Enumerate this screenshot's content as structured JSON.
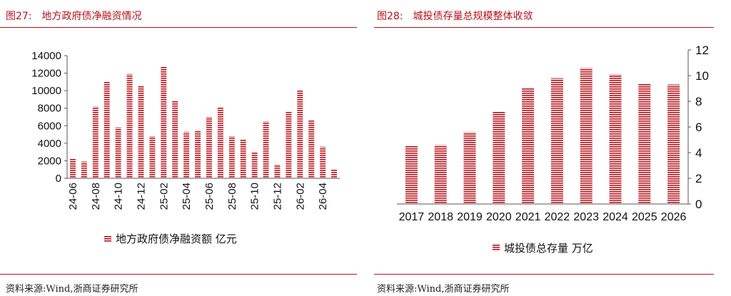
{
  "left": {
    "fig_label": "图27:",
    "fig_title": "地方政府债净融资情况",
    "source_label": "资料来源:",
    "source_text": "Wind,浙商证券研究所",
    "chart_data": {
      "type": "bar",
      "categories": [
        "24-06",
        "24-07",
        "24-08",
        "24-09",
        "24-10",
        "24-11",
        "24-12",
        "25-01",
        "25-02",
        "25-03",
        "25-04",
        "25-05",
        "25-06",
        "25-07",
        "25-08",
        "25-09",
        "25-10",
        "25-11",
        "25-12",
        "26-01",
        "26-02",
        "26-03",
        "26-04",
        "26-05"
      ],
      "tick_labels": [
        "24-06",
        "24-08",
        "24-10",
        "24-12",
        "25-02",
        "25-04",
        "25-06",
        "25-08",
        "25-10",
        "25-12",
        "26-02",
        "26-04"
      ],
      "series": [
        {
          "name": "地方政府债净融资额 亿元",
          "values": [
            2200,
            1900,
            8200,
            11000,
            5800,
            11900,
            10500,
            4800,
            12700,
            8800,
            5300,
            5500,
            7000,
            8100,
            4800,
            4500,
            3000,
            6500,
            1600,
            7600,
            10100,
            6700,
            3600,
            1000
          ]
        }
      ],
      "ylim": [
        0,
        14000
      ],
      "yticks": [
        0,
        2000,
        4000,
        6000,
        8000,
        10000,
        12000,
        14000
      ],
      "legend_position": "bottom",
      "grid": false,
      "bar_color": "#b5121b"
    }
  },
  "right": {
    "fig_label": "图28:",
    "fig_title": "城投债存量总规模整体收敛",
    "source_label": "资料来源:",
    "source_text": "Wind,浙商证券研究所",
    "chart_data": {
      "type": "bar",
      "categories": [
        "2017",
        "2018",
        "2019",
        "2020",
        "2021",
        "2022",
        "2023",
        "2024",
        "2025",
        "2026"
      ],
      "series": [
        {
          "name": "城投债总存量 万亿",
          "values": [
            4.5,
            4.6,
            5.6,
            7.2,
            9.0,
            9.8,
            10.6,
            10.1,
            9.4,
            9.3
          ]
        }
      ],
      "ylim": [
        0,
        12
      ],
      "yticks": [
        0,
        2,
        4,
        6,
        8,
        10,
        12
      ],
      "y_axis_side": "right",
      "legend_position": "bottom",
      "grid": false,
      "bar_color": "#b5121b"
    }
  }
}
